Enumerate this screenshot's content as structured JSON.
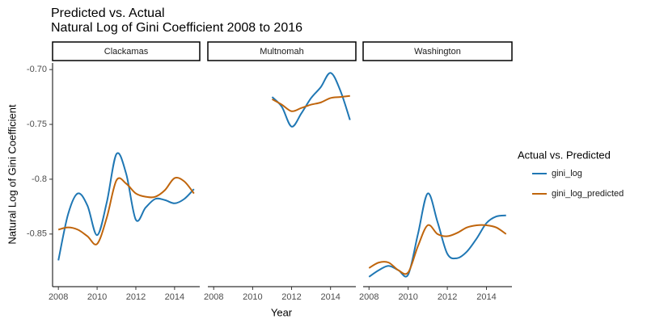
{
  "figure": {
    "title": "Predicted vs. Actual",
    "subtitle": "Natural Log of Gini Coefficient 2008 to 2016",
    "xlabel": "Year",
    "ylabel": "Natural Log of Gini Coefficient",
    "legend_title": "Actual vs. Predicted"
  },
  "chart_data": [
    {
      "type": "line",
      "facet": "Clackamas",
      "x": [
        2008,
        2008.5,
        2009,
        2009.5,
        2010,
        2010.5,
        2011,
        2011.5,
        2012,
        2012.5,
        2013,
        2013.5,
        2014,
        2014.5,
        2015
      ],
      "series": [
        {
          "name": "gini_log",
          "color": "#1f77b4",
          "values": [
            -0.874,
            -0.832,
            -0.813,
            -0.824,
            -0.851,
            -0.821,
            -0.777,
            -0.795,
            -0.837,
            -0.826,
            -0.818,
            -0.819,
            -0.822,
            -0.818,
            -0.809
          ]
        },
        {
          "name": "gini_log_predicted",
          "color": "#c0650c",
          "values": [
            -0.846,
            -0.844,
            -0.846,
            -0.852,
            -0.859,
            -0.835,
            -0.801,
            -0.804,
            -0.813,
            -0.816,
            -0.816,
            -0.81,
            -0.799,
            -0.802,
            -0.813
          ]
        }
      ],
      "xlim": [
        2007.7,
        2015.3
      ],
      "xticks": [
        2008,
        2010,
        2012,
        2014
      ],
      "ylim": [
        -0.898,
        -0.694
      ],
      "yticks": [
        -0.85,
        -0.8,
        -0.75,
        {
          "value": -0.7,
          "label": "-0.70"
        }
      ]
    },
    {
      "type": "line",
      "facet": "Multnomah",
      "x": [
        2008,
        2008.5,
        2009,
        2009.5,
        2010,
        2010.5,
        2011,
        2011.5,
        2012,
        2012.5,
        2013,
        2013.5,
        2014,
        2014.5,
        2015
      ],
      "series": [
        {
          "name": "gini_log",
          "color": "#1f77b4",
          "values": [
            null,
            null,
            null,
            null,
            null,
            null,
            -0.725,
            -0.734,
            -0.752,
            -0.74,
            -0.726,
            -0.716,
            -0.703,
            -0.719,
            -0.746
          ]
        },
        {
          "name": "gini_log_predicted",
          "color": "#c0650c",
          "values": [
            null,
            null,
            null,
            null,
            null,
            null,
            -0.727,
            -0.732,
            -0.738,
            -0.735,
            -0.732,
            -0.73,
            -0.726,
            -0.725,
            -0.724
          ]
        }
      ],
      "xlim": [
        2007.7,
        2015.3
      ],
      "xticks": [
        2008,
        2010,
        2012,
        2014
      ],
      "ylim": [
        -0.898,
        -0.694
      ]
    },
    {
      "type": "line",
      "facet": "Washington",
      "x": [
        2008,
        2008.5,
        2009,
        2009.5,
        2010,
        2010.5,
        2011,
        2011.5,
        2012,
        2012.5,
        2013,
        2013.5,
        2014,
        2014.5,
        2015
      ],
      "series": [
        {
          "name": "gini_log",
          "color": "#1f77b4",
          "values": [
            -0.889,
            -0.883,
            -0.879,
            -0.883,
            -0.887,
            -0.85,
            -0.813,
            -0.839,
            -0.868,
            -0.872,
            -0.866,
            -0.854,
            -0.84,
            -0.834,
            -0.833
          ]
        },
        {
          "name": "gini_log_predicted",
          "color": "#c0650c",
          "values": [
            -0.881,
            -0.876,
            -0.876,
            -0.883,
            -0.885,
            -0.861,
            -0.842,
            -0.85,
            -0.852,
            -0.849,
            -0.844,
            -0.842,
            -0.842,
            -0.844,
            -0.85
          ]
        }
      ],
      "xlim": [
        2007.7,
        2015.3
      ],
      "xticks": [
        2008,
        2010,
        2012,
        2014
      ],
      "ylim": [
        -0.898,
        -0.694
      ]
    }
  ]
}
